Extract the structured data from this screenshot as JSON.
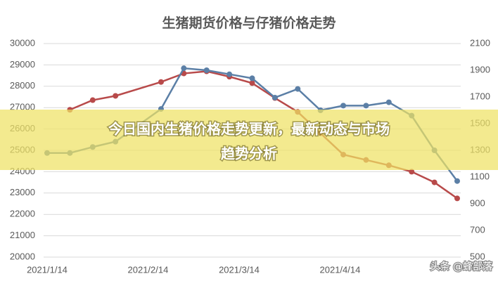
{
  "chart_data": {
    "type": "line",
    "title": "生猪期货价格与仔猪价格走势",
    "x": [
      "2021/1/14",
      "2021/1/21",
      "2021/1/28",
      "2021/2/4",
      "2021/2/18",
      "2021/2/25",
      "2021/3/4",
      "2021/3/11",
      "2021/3/18",
      "2021/3/25",
      "2021/4/1",
      "2021/4/8",
      "2021/4/15",
      "2021/4/22",
      "2021/4/29",
      "2021/5/6",
      "2021/5/13",
      "2021/5/20"
    ],
    "xlim": [
      "2021/1/14",
      "2021/5/20"
    ],
    "xticks": [
      "2021/1/14",
      "2021/2/14",
      "2021/3/14",
      "2021/4/14"
    ],
    "ylim": [
      20000,
      30000
    ],
    "yticks": [
      20000,
      21000,
      22000,
      23000,
      24000,
      25000,
      26000,
      27000,
      28000,
      29000,
      30000
    ],
    "y2lim": [
      500,
      2100
    ],
    "y2ticks": [
      500,
      700,
      900,
      1100,
      1300,
      1500,
      1700,
      1900,
      2100
    ],
    "grid": true,
    "series": [
      {
        "color": "#b84a4a",
        "values": [
          null,
          26900,
          27350,
          27550,
          28200,
          28600,
          28700,
          28450,
          28150,
          27450,
          26800,
          25800,
          24800,
          24550,
          24300,
          24000,
          23500,
          22750
        ]
      },
      {
        "color": "#5b7fa6",
        "axis": "y2",
        "values": [
          1280,
          1280,
          1325,
          1365,
          1610,
          1915,
          1900,
          1870,
          1840,
          1695,
          1760,
          1600,
          1635,
          1635,
          1660,
          1560,
          1300,
          1070
        ]
      }
    ]
  },
  "overlay": {
    "headline_line1": "今日国内生猪价格走势更新，最新动态与市场",
    "headline_line2": "趋势分析",
    "watermark": "头条 @蜂部落"
  }
}
